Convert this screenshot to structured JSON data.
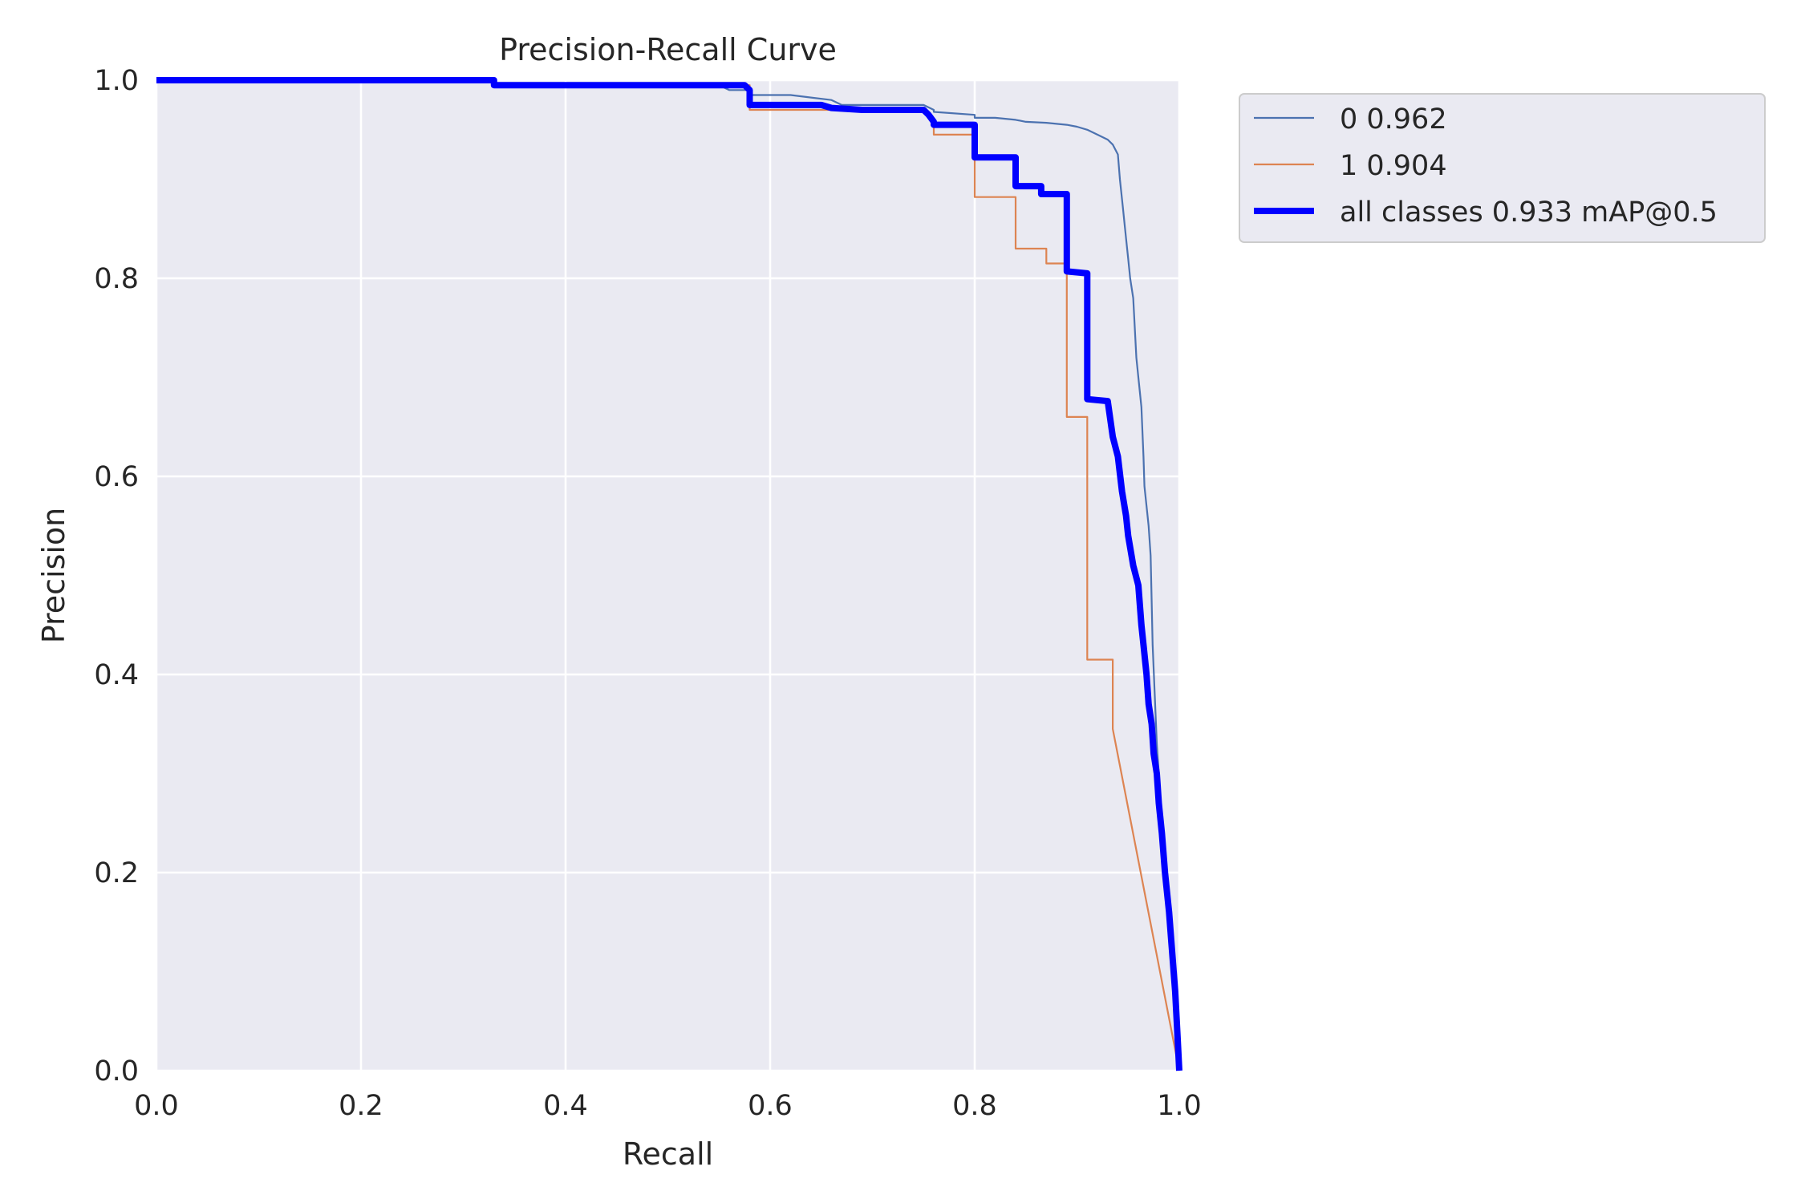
{
  "chart_data": {
    "type": "line",
    "title": "Precision-Recall Curve",
    "xlabel": "Recall",
    "ylabel": "Precision",
    "xlim": [
      0,
      1
    ],
    "ylim": [
      0,
      1
    ],
    "xticks": [
      0.0,
      0.2,
      0.4,
      0.6,
      0.8,
      1.0
    ],
    "yticks": [
      0.0,
      0.2,
      0.4,
      0.6,
      0.8,
      1.0
    ],
    "xtick_labels": [
      "0.0",
      "0.2",
      "0.4",
      "0.6",
      "0.8",
      "1.0"
    ],
    "ytick_labels": [
      "0.0",
      "0.2",
      "0.4",
      "0.6",
      "0.8",
      "1.0"
    ],
    "grid": true,
    "legend_position": "outside-upper-right",
    "background": "#eaeaf2",
    "series": [
      {
        "name": "0 0.962",
        "color": "#4c72b0",
        "line_width": "thin",
        "x": [
          0,
          0.33,
          0.33,
          0.55,
          0.56,
          0.58,
          0.58,
          0.62,
          0.66,
          0.67,
          0.7,
          0.75,
          0.76,
          0.76,
          0.8,
          0.8,
          0.82,
          0.84,
          0.85,
          0.87,
          0.89,
          0.9,
          0.91,
          0.92,
          0.93,
          0.935,
          0.94,
          0.942,
          0.945,
          0.948,
          0.95,
          0.952,
          0.955,
          0.958,
          0.96,
          0.963,
          0.965,
          0.966,
          0.968,
          0.97,
          0.972,
          0.974,
          0.976,
          0.978,
          0.98,
          0.982,
          0.984,
          0.986,
          0.988,
          0.99,
          0.993,
          0.996,
          1.0
        ],
        "y": [
          1.0,
          1.0,
          0.995,
          0.995,
          0.99,
          0.99,
          0.985,
          0.985,
          0.98,
          0.975,
          0.975,
          0.975,
          0.97,
          0.968,
          0.965,
          0.962,
          0.962,
          0.96,
          0.958,
          0.957,
          0.955,
          0.953,
          0.95,
          0.945,
          0.94,
          0.935,
          0.925,
          0.9,
          0.87,
          0.84,
          0.82,
          0.8,
          0.78,
          0.72,
          0.7,
          0.67,
          0.62,
          0.59,
          0.57,
          0.55,
          0.52,
          0.43,
          0.38,
          0.33,
          0.3,
          0.26,
          0.23,
          0.2,
          0.17,
          0.14,
          0.1,
          0.06,
          0.0
        ]
      },
      {
        "name": "1 0.904",
        "color": "#dd8452",
        "line_width": "thin",
        "x": [
          0,
          0.33,
          0.33,
          0.58,
          0.58,
          0.75,
          0.76,
          0.76,
          0.8,
          0.8,
          0.84,
          0.84,
          0.87,
          0.87,
          0.89,
          0.89,
          0.91,
          0.91,
          0.935,
          0.935,
          1.0
        ],
        "y": [
          1.0,
          1.0,
          0.995,
          0.995,
          0.97,
          0.97,
          0.955,
          0.945,
          0.945,
          0.882,
          0.882,
          0.83,
          0.83,
          0.815,
          0.815,
          0.66,
          0.66,
          0.415,
          0.415,
          0.345,
          0.0
        ]
      },
      {
        "name": "all classes 0.933 mAP@0.5",
        "color": "#0000ff",
        "line_width": "thick",
        "x": [
          0,
          0.33,
          0.33,
          0.56,
          0.575,
          0.58,
          0.58,
          0.65,
          0.66,
          0.69,
          0.72,
          0.75,
          0.755,
          0.76,
          0.76,
          0.8,
          0.8,
          0.84,
          0.84,
          0.865,
          0.865,
          0.89,
          0.89,
          0.91,
          0.91,
          0.93,
          0.935,
          0.94,
          0.944,
          0.948,
          0.95,
          0.955,
          0.96,
          0.963,
          0.965,
          0.968,
          0.97,
          0.973,
          0.975,
          0.978,
          0.98,
          0.983,
          0.986,
          0.99,
          0.993,
          0.996,
          0.998,
          1.0
        ],
        "y": [
          1.0,
          1.0,
          0.995,
          0.995,
          0.995,
          0.99,
          0.975,
          0.975,
          0.972,
          0.97,
          0.97,
          0.97,
          0.965,
          0.958,
          0.955,
          0.955,
          0.922,
          0.922,
          0.893,
          0.893,
          0.885,
          0.885,
          0.807,
          0.805,
          0.678,
          0.676,
          0.64,
          0.62,
          0.585,
          0.56,
          0.54,
          0.51,
          0.49,
          0.45,
          0.43,
          0.4,
          0.37,
          0.35,
          0.32,
          0.3,
          0.27,
          0.24,
          0.2,
          0.16,
          0.12,
          0.08,
          0.04,
          0.0
        ]
      }
    ]
  }
}
